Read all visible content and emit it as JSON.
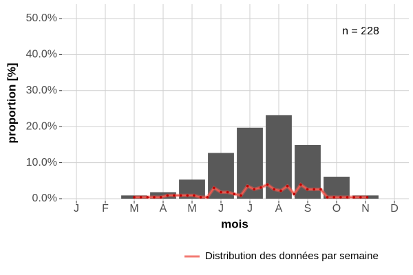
{
  "chart_data": {
    "type": "bar",
    "annotation": "n = 228",
    "x_label": "mois",
    "y_label": "proportion [%]",
    "categories": [
      "J",
      "F",
      "M",
      "A",
      "M",
      "J",
      "J",
      "A",
      "S",
      "O",
      "N",
      "D"
    ],
    "xlim": [
      0.5,
      12.5
    ],
    "ylim": [
      0,
      54
    ],
    "yticks": [
      {
        "value": 0,
        "label": "0.0%"
      },
      {
        "value": 10,
        "label": "10.0%"
      },
      {
        "value": 20,
        "label": "20.0%"
      },
      {
        "value": 30,
        "label": "30.0%"
      },
      {
        "value": 40,
        "label": "40.0%"
      },
      {
        "value": 50,
        "label": "50.0%"
      }
    ],
    "grid": true,
    "series": [
      {
        "type": "bar",
        "color": "#595959",
        "values": [
          0,
          0,
          0.9,
          1.8,
          5.3,
          12.7,
          19.7,
          23.2,
          14.9,
          6.1,
          0.9,
          0
        ]
      },
      {
        "type": "line",
        "name": "Distribution des données par semaine",
        "color": "#f05a50",
        "x": [
          3.0,
          3.23,
          3.46,
          3.69,
          3.92,
          4.15,
          4.38,
          4.61,
          4.84,
          5.07,
          5.3,
          5.53,
          5.76,
          6.0,
          6.23,
          6.46,
          6.69,
          6.92,
          7.15,
          7.38,
          7.61,
          7.84,
          8.07,
          8.3,
          8.53,
          8.76,
          8.99,
          9.22,
          9.45,
          9.68,
          9.91,
          10.14,
          10.37,
          10.6,
          10.83,
          11.06
        ],
        "values": [
          0.4,
          0.4,
          0.4,
          0.4,
          0.4,
          0.9,
          0.9,
          0.9,
          0.9,
          0.9,
          0.4,
          0.4,
          3.0,
          1.8,
          1.8,
          1.3,
          0.9,
          3.5,
          2.6,
          3.1,
          3.9,
          2.6,
          2.2,
          3.5,
          1.3,
          3.9,
          2.6,
          2.6,
          2.6,
          0.4,
          0.4,
          0.4,
          0.4,
          0.4,
          0.4,
          0.4
        ]
      }
    ]
  }
}
